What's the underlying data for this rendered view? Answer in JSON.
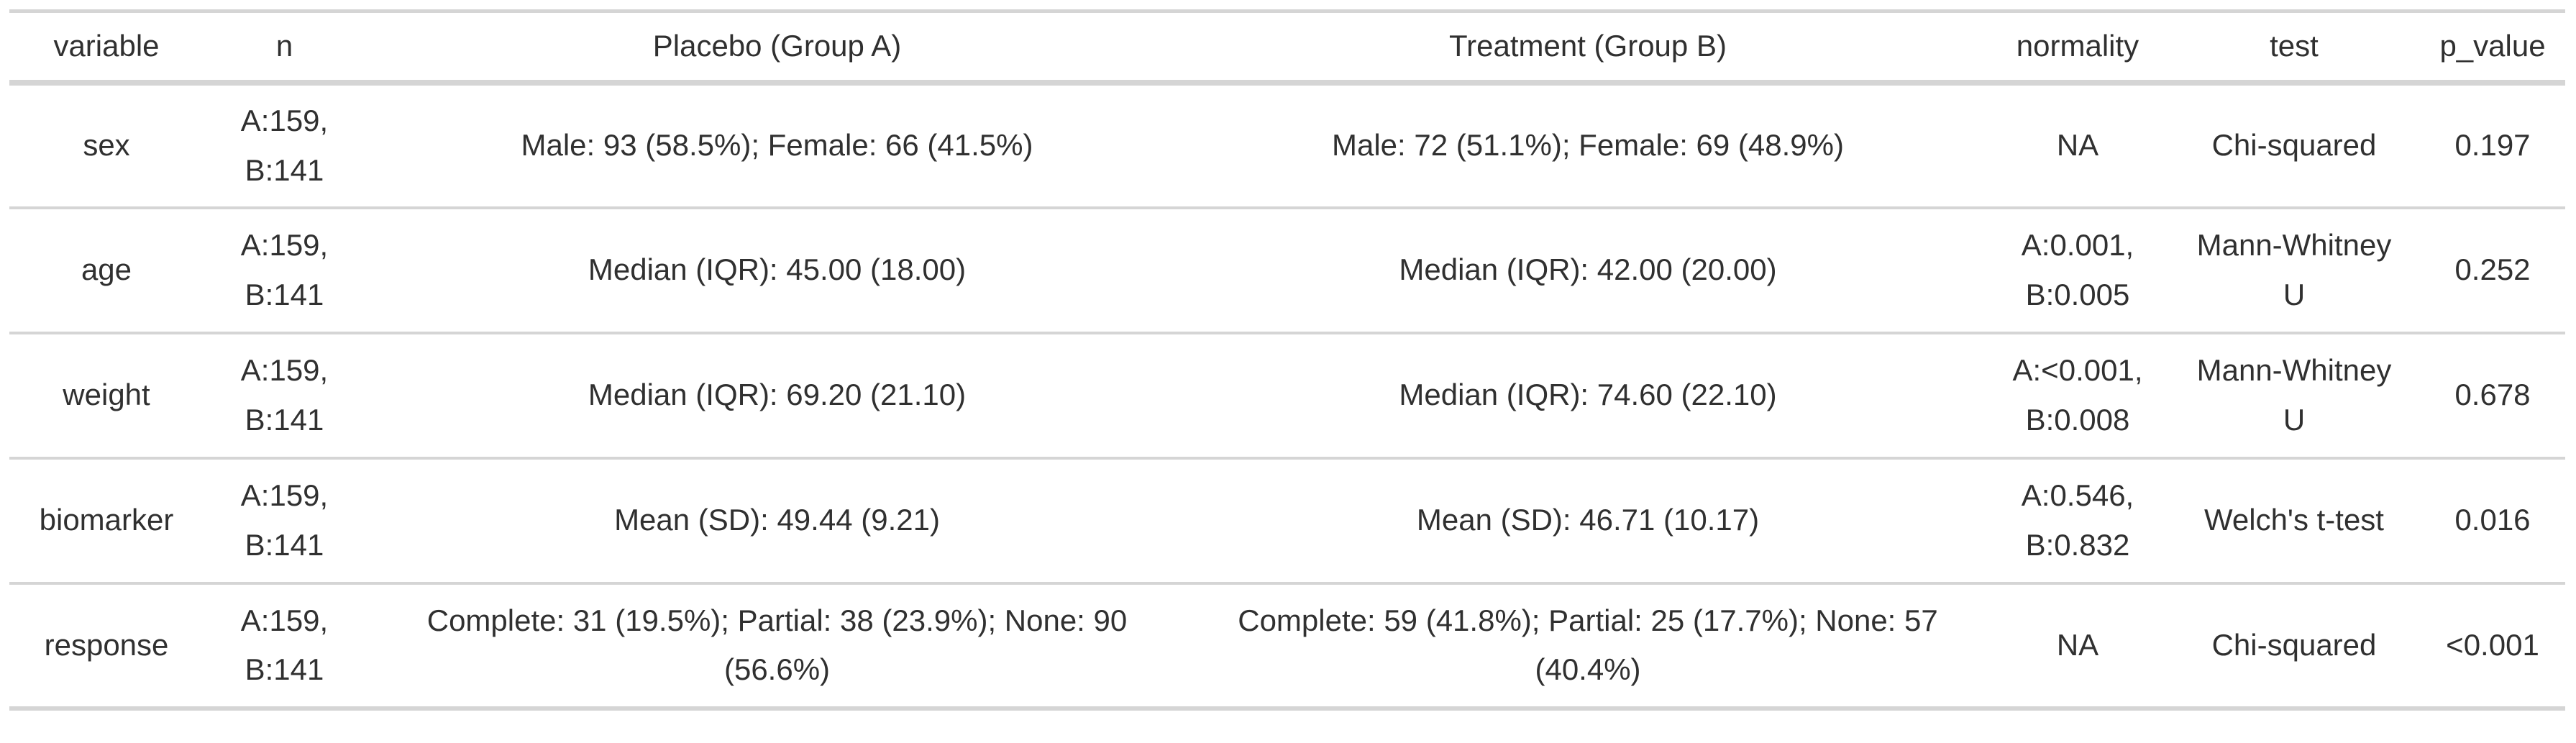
{
  "colors": {
    "background": "#ffffff",
    "border": "#d5d5d5",
    "text": "#303030"
  },
  "table": {
    "columns": [
      {
        "key": "variable",
        "label": "variable"
      },
      {
        "key": "n",
        "label": "n"
      },
      {
        "key": "placebo",
        "label": "Placebo (Group A)"
      },
      {
        "key": "treatment",
        "label": "Treatment (Group B)"
      },
      {
        "key": "normality",
        "label": "normality"
      },
      {
        "key": "test",
        "label": "test"
      },
      {
        "key": "p_value",
        "label": "p_value"
      }
    ],
    "rows": [
      {
        "variable": "sex",
        "n": "A:159,\nB:141",
        "placebo": "Male: 93 (58.5%); Female: 66 (41.5%)",
        "treatment": "Male: 72 (51.1%); Female: 69 (48.9%)",
        "normality": "NA",
        "test": "Chi-squared",
        "p_value": "0.197"
      },
      {
        "variable": "age",
        "n": "A:159,\nB:141",
        "placebo": "Median (IQR): 45.00 (18.00)",
        "treatment": "Median (IQR): 42.00 (20.00)",
        "normality": "A:0.001,\nB:0.005",
        "test": "Mann-Whitney\nU",
        "p_value": "0.252"
      },
      {
        "variable": "weight",
        "n": "A:159,\nB:141",
        "placebo": "Median (IQR): 69.20 (21.10)",
        "treatment": "Median (IQR): 74.60 (22.10)",
        "normality": "A:<0.001,\nB:0.008",
        "test": "Mann-Whitney\nU",
        "p_value": "0.678"
      },
      {
        "variable": "biomarker",
        "n": "A:159,\nB:141",
        "placebo": "Mean (SD): 49.44 (9.21)",
        "treatment": "Mean (SD): 46.71 (10.17)",
        "normality": "A:0.546,\nB:0.832",
        "test": "Welch's t-test",
        "p_value": "0.016"
      },
      {
        "variable": "response",
        "n": "A:159,\nB:141",
        "placebo": "Complete: 31 (19.5%); Partial: 38 (23.9%); None: 90\n(56.6%)",
        "treatment": "Complete: 59 (41.8%); Partial: 25 (17.7%); None: 57\n(40.4%)",
        "normality": "NA",
        "test": "Chi-squared",
        "p_value": "<0.001"
      }
    ]
  },
  "chart_data": {
    "type": "table",
    "title": "",
    "columns": [
      "variable",
      "n",
      "Placebo (Group A)",
      "Treatment (Group B)",
      "normality",
      "test",
      "p_value"
    ],
    "rows": [
      [
        "sex",
        "A:159, B:141",
        "Male: 93 (58.5%); Female: 66 (41.5%)",
        "Male: 72 (51.1%); Female: 69 (48.9%)",
        "NA",
        "Chi-squared",
        "0.197"
      ],
      [
        "age",
        "A:159, B:141",
        "Median (IQR): 45.00 (18.00)",
        "Median (IQR): 42.00 (20.00)",
        "A:0.001, B:0.005",
        "Mann-Whitney U",
        "0.252"
      ],
      [
        "weight",
        "A:159, B:141",
        "Median (IQR): 69.20 (21.10)",
        "Median (IQR): 74.60 (22.10)",
        "A:<0.001, B:0.008",
        "Mann-Whitney U",
        "0.678"
      ],
      [
        "biomarker",
        "A:159, B:141",
        "Mean (SD): 49.44 (9.21)",
        "Mean (SD): 46.71 (10.17)",
        "A:0.546, B:0.832",
        "Welch's t-test",
        "0.016"
      ],
      [
        "response",
        "A:159, B:141",
        "Complete: 31 (19.5%); Partial: 38 (23.9%); None: 90 (56.6%)",
        "Complete: 59 (41.8%); Partial: 25 (17.7%); None: 57 (40.4%)",
        "NA",
        "Chi-squared",
        "<0.001"
      ]
    ]
  }
}
